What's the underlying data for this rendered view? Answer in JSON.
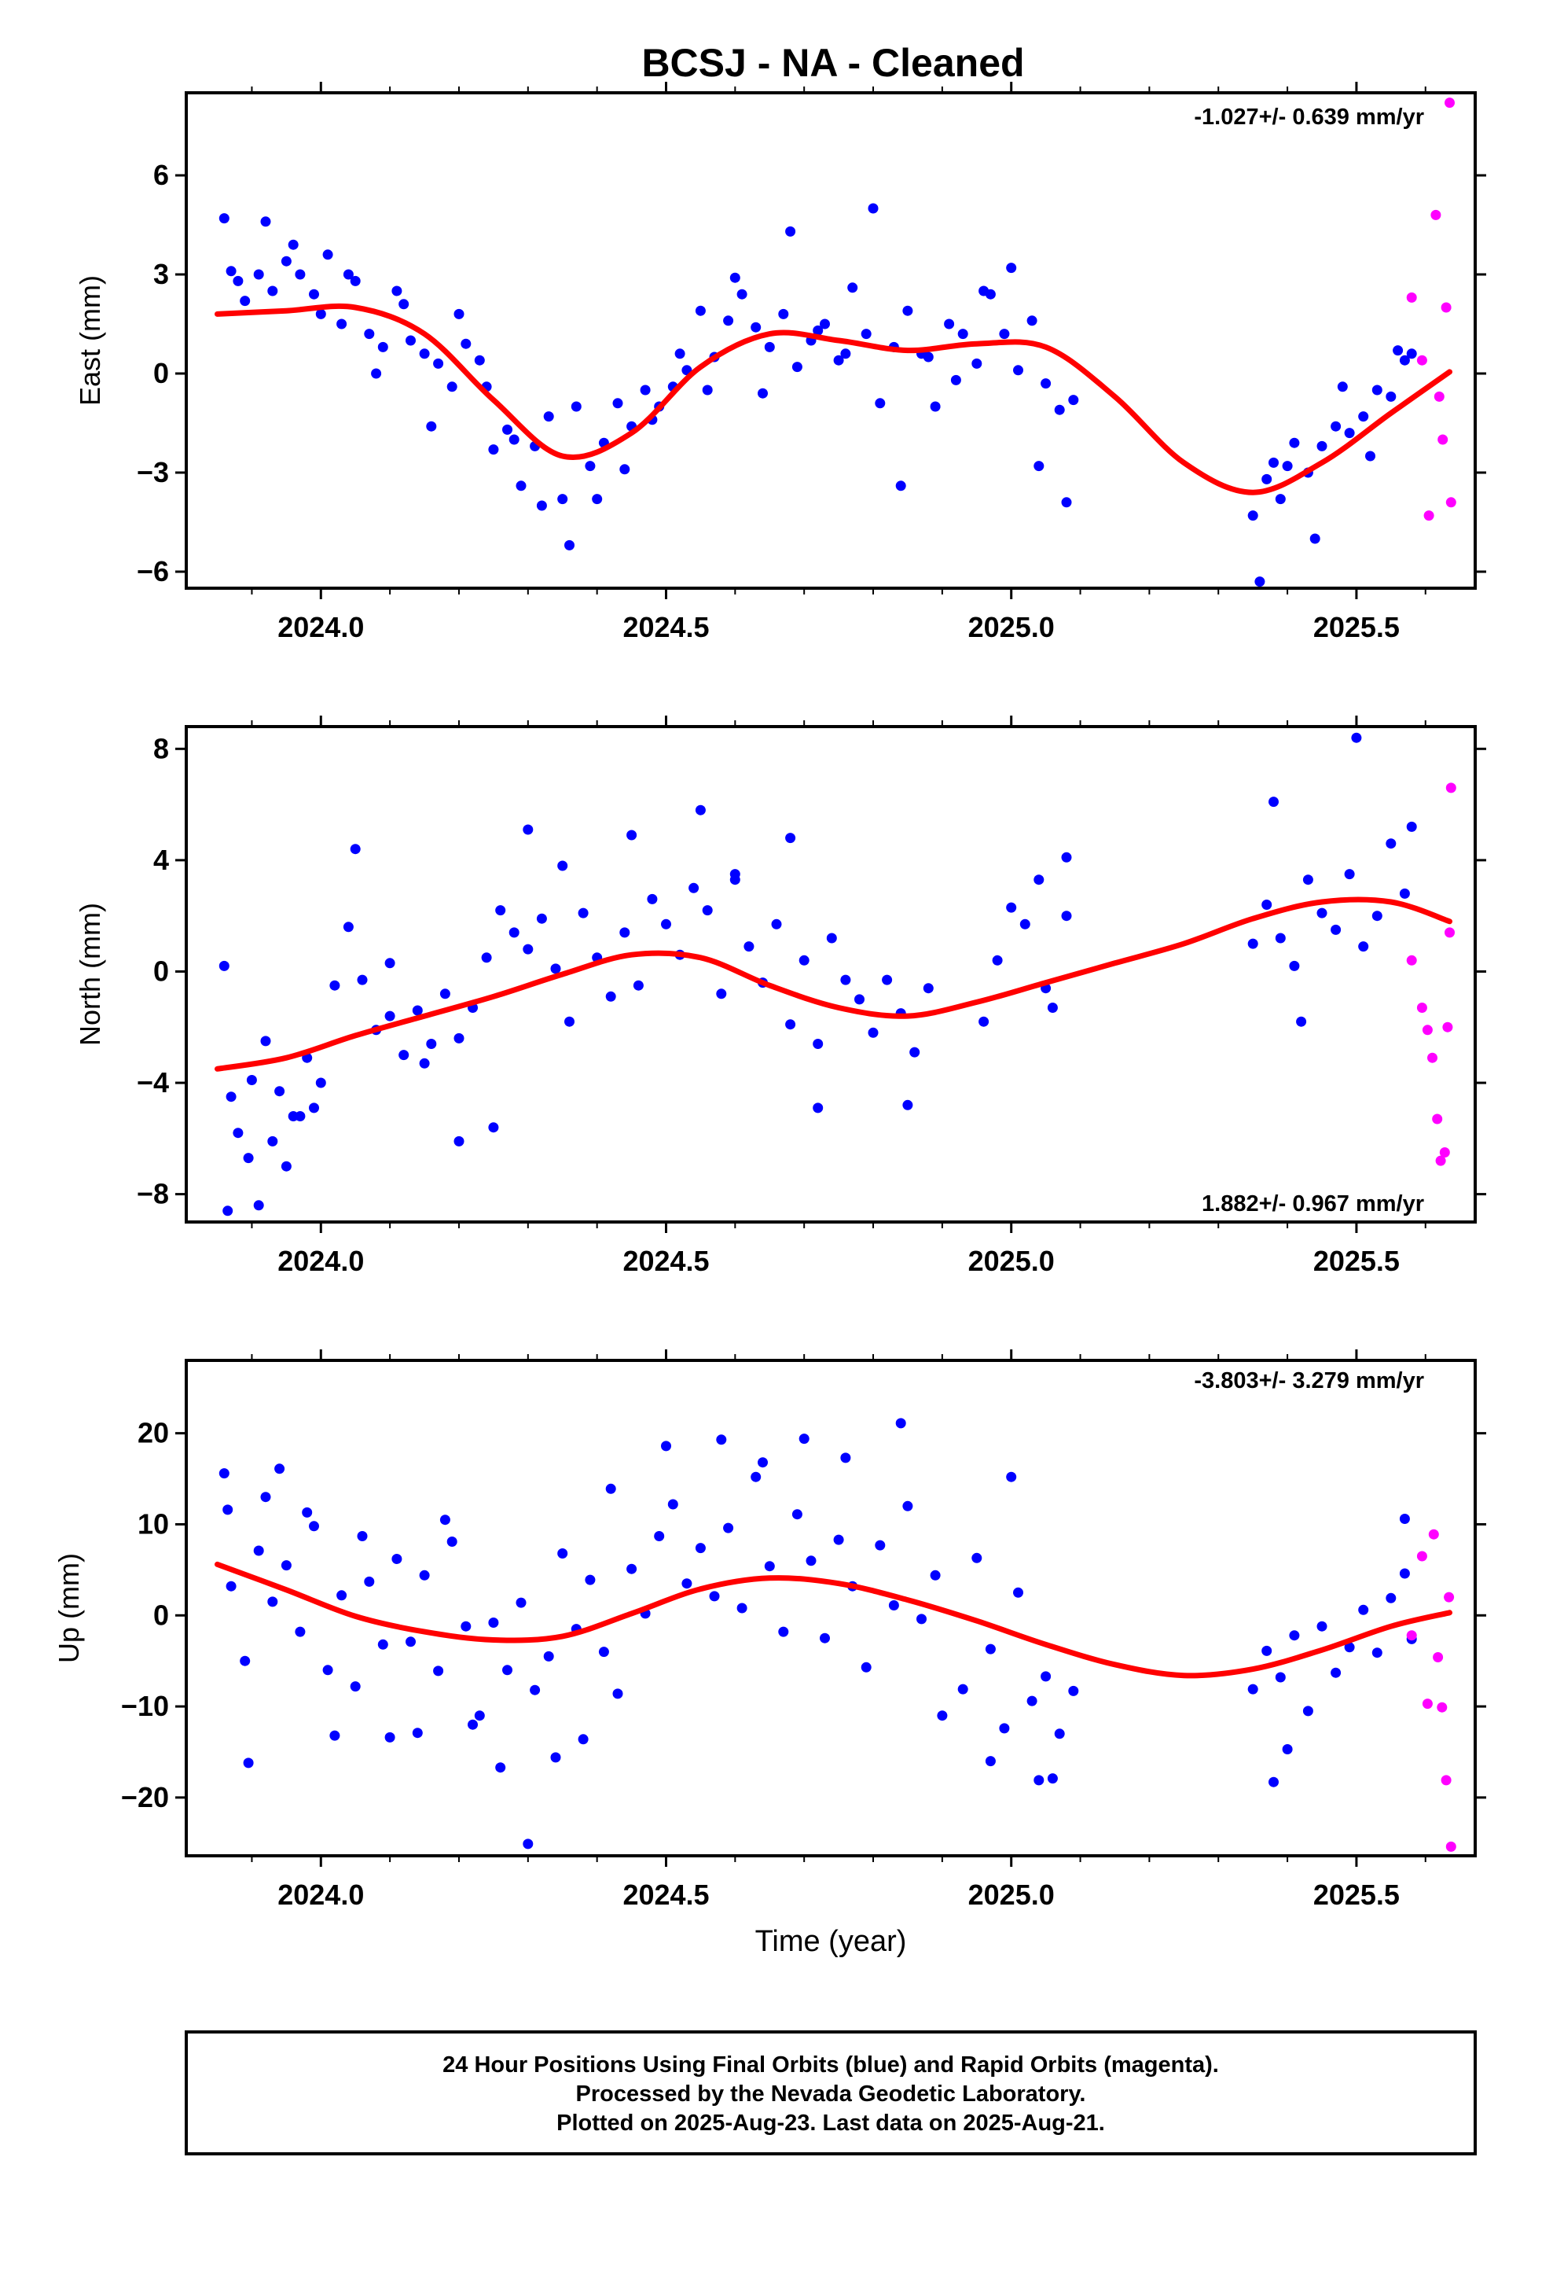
{
  "title": "BCSJ  - NA - Cleaned",
  "xlabel": "Time (year)",
  "footer": {
    "line1": "24 Hour Positions Using Final Orbits (blue) and Rapid Orbits (magenta).",
    "line2": "Processed by the Nevada Geodetic Laboratory.",
    "line3": "Plotted on 2025-Aug-23. Last data on 2025-Aug-21."
  },
  "colors": {
    "final": "#0000ff",
    "rapid": "#ff00ff",
    "fit": "#ff0000",
    "frame": "#000000"
  },
  "chart_data": [
    {
      "type": "scatter",
      "ylabel": "East (mm)",
      "rate": "-1.027+/- 0.639 mm/yr",
      "xlim": [
        2023.805,
        2025.672
      ],
      "ylim": [
        -6.5,
        8.5
      ],
      "xticks": [
        2024.0,
        2024.5,
        2025.0,
        2025.5
      ],
      "xticklabels": [
        "2024.0",
        "2024.5",
        "2025.0",
        "2025.5"
      ],
      "yticks": [
        -6,
        -3,
        0,
        3,
        6
      ],
      "yticklabels": [
        "−6",
        "−3",
        "0",
        "3",
        "6"
      ],
      "fit": {
        "x": [
          2023.85,
          2023.95,
          2024.05,
          2024.15,
          2024.25,
          2024.35,
          2024.45,
          2024.55,
          2024.65,
          2024.75,
          2024.85,
          2024.95,
          2025.05,
          2025.15,
          2025.25,
          2025.35,
          2025.45,
          2025.55,
          2025.635
        ],
        "y": [
          1.8,
          1.9,
          2.0,
          1.2,
          -0.8,
          -2.5,
          -1.8,
          0.2,
          1.2,
          1.0,
          0.7,
          0.9,
          0.8,
          -0.7,
          -2.7,
          -3.6,
          -2.7,
          -1.2,
          0.05
        ]
      },
      "series": [
        {
          "kind": "final",
          "x": [
            2023.86,
            2023.87,
            2023.89,
            2023.91,
            2023.93,
            2023.95,
            2023.97,
            2023.99,
            2024.01,
            2024.03,
            2024.05,
            2024.07,
            2024.09,
            2024.11,
            2024.13,
            2024.15,
            2024.17,
            2024.19,
            2024.21,
            2024.23,
            2024.25,
            2024.27,
            2024.29,
            2024.31,
            2024.33,
            2024.35,
            2024.37,
            2024.39,
            2024.41,
            2024.43,
            2024.45,
            2024.47,
            2024.49,
            2024.51,
            2024.53,
            2024.55,
            2024.57,
            2024.59,
            2024.61,
            2024.63,
            2024.65,
            2024.67,
            2024.69,
            2024.71,
            2024.73,
            2024.75,
            2024.77,
            2024.79,
            2024.81,
            2024.83,
            2024.85,
            2024.87,
            2024.89,
            2024.91,
            2024.93,
            2024.95,
            2024.97,
            2024.99,
            2025.01,
            2025.03,
            2025.05,
            2025.07,
            2025.09,
            2025.35,
            2025.37,
            2025.39,
            2025.41,
            2025.43,
            2025.45,
            2025.47,
            2025.49,
            2025.51,
            2025.53,
            2025.55,
            2025.57,
            2025.58,
            2023.88,
            2023.92,
            2023.96,
            2024.0,
            2024.04,
            2024.08,
            2024.12,
            2024.16,
            2024.2,
            2024.24,
            2024.28,
            2024.32,
            2024.36,
            2024.4,
            2024.44,
            2024.48,
            2024.52,
            2024.56,
            2024.6,
            2024.64,
            2024.68,
            2024.72,
            2024.76,
            2024.8,
            2024.84,
            2024.88,
            2024.92,
            2024.96,
            2025.0,
            2025.04,
            2025.08,
            2025.36,
            2025.38,
            2025.4,
            2025.44,
            2025.48,
            2025.52,
            2025.56
          ],
          "y": [
            4.7,
            3.1,
            2.2,
            3.0,
            2.5,
            3.4,
            3.0,
            2.4,
            3.6,
            1.5,
            2.8,
            1.2,
            0.8,
            2.5,
            1.0,
            0.6,
            0.3,
            -0.4,
            0.9,
            0.4,
            -2.3,
            -1.7,
            -3.4,
            -2.2,
            -1.3,
            -3.8,
            -1.0,
            -2.8,
            -2.1,
            -0.9,
            -1.6,
            -0.5,
            -1.0,
            -0.4,
            0.1,
            1.9,
            0.5,
            1.6,
            2.4,
            1.4,
            0.8,
            1.8,
            0.2,
            1.0,
            1.5,
            0.4,
            2.6,
            1.2,
            -0.9,
            0.8,
            1.9,
            0.6,
            -1.0,
            1.5,
            1.2,
            0.3,
            2.4,
            1.2,
            0.1,
            1.6,
            -0.3,
            -1.1,
            -0.8,
            -4.3,
            -3.2,
            -3.8,
            -2.1,
            -3.0,
            -2.2,
            -1.6,
            -1.8,
            -1.3,
            -0.5,
            -0.7,
            0.4,
            0.6,
            2.8,
            4.6,
            3.9,
            1.8,
            3.0,
            0.0,
            2.1,
            -1.6,
            1.8,
            -0.4,
            -2.0,
            -4.0,
            -5.2,
            -3.8,
            -2.9,
            -1.4,
            0.6,
            -0.5,
            2.9,
            -0.6,
            4.3,
            1.3,
            0.6,
            5.0,
            -3.4,
            0.5,
            -0.2,
            2.5,
            3.2,
            -2.8,
            -3.9,
            -6.3,
            -2.7,
            -2.8,
            -5.0,
            -0.4,
            -2.5,
            0.7
          ]
        },
        {
          "kind": "rapid",
          "x": [
            2025.58,
            2025.595,
            2025.605,
            2025.615,
            2025.62,
            2025.625,
            2025.63,
            2025.635,
            2025.637
          ],
          "y": [
            2.3,
            0.4,
            -4.3,
            4.8,
            -0.7,
            -2.0,
            2.0,
            8.2,
            -3.9
          ]
        }
      ]
    },
    {
      "type": "scatter",
      "ylabel": "North (mm)",
      "rate": "1.882+/- 0.967 mm/yr",
      "xlim": [
        2023.805,
        2025.672
      ],
      "ylim": [
        -9.0,
        8.8
      ],
      "xticks": [
        2024.0,
        2024.5,
        2025.0,
        2025.5
      ],
      "xticklabels": [
        "2024.0",
        "2024.5",
        "2025.0",
        "2025.5"
      ],
      "yticks": [
        -8,
        -4,
        0,
        4,
        8
      ],
      "yticklabels": [
        "−8",
        "−4",
        "0",
        "4",
        "8"
      ],
      "fit": {
        "x": [
          2023.85,
          2023.95,
          2024.05,
          2024.15,
          2024.25,
          2024.35,
          2024.45,
          2024.55,
          2024.65,
          2024.75,
          2024.85,
          2024.95,
          2025.05,
          2025.15,
          2025.25,
          2025.35,
          2025.45,
          2025.55,
          2025.635
        ],
        "y": [
          -3.5,
          -3.1,
          -2.3,
          -1.6,
          -0.9,
          -0.1,
          0.6,
          0.5,
          -0.5,
          -1.3,
          -1.6,
          -1.1,
          -0.4,
          0.3,
          1.0,
          1.9,
          2.5,
          2.5,
          1.8
        ]
      },
      "series": [
        {
          "kind": "final",
          "x": [
            2023.86,
            2023.87,
            2023.88,
            2023.9,
            2023.92,
            2023.94,
            2023.96,
            2023.98,
            2024.0,
            2024.02,
            2024.04,
            2024.06,
            2024.08,
            2024.1,
            2024.12,
            2024.14,
            2024.16,
            2024.18,
            2024.2,
            2024.22,
            2024.24,
            2024.26,
            2024.28,
            2024.3,
            2024.32,
            2024.34,
            2024.36,
            2024.38,
            2024.4,
            2024.42,
            2024.44,
            2024.46,
            2024.48,
            2024.5,
            2024.52,
            2024.54,
            2024.56,
            2024.58,
            2024.6,
            2024.62,
            2024.64,
            2024.66,
            2024.68,
            2024.7,
            2024.72,
            2024.74,
            2024.76,
            2024.78,
            2024.8,
            2024.82,
            2024.84,
            2024.86,
            2024.88,
            2024.96,
            2024.98,
            2025.0,
            2025.02,
            2025.04,
            2025.06,
            2025.08,
            2025.35,
            2025.37,
            2025.39,
            2025.41,
            2025.43,
            2025.45,
            2025.47,
            2025.49,
            2025.51,
            2025.53,
            2025.55,
            2025.57,
            2025.58,
            2023.865,
            2023.895,
            2023.91,
            2023.93,
            2023.95,
            2023.97,
            2023.99,
            2024.05,
            2024.1,
            2024.15,
            2024.2,
            2024.25,
            2024.3,
            2024.35,
            2024.45,
            2024.55,
            2024.6,
            2024.68,
            2024.72,
            2024.85,
            2025.05,
            2025.08,
            2025.38,
            2025.42,
            2025.5
          ],
          "y": [
            0.2,
            -4.5,
            -5.8,
            -3.9,
            -2.5,
            -4.3,
            -5.2,
            -3.1,
            -4.0,
            -0.5,
            1.6,
            -0.3,
            -2.1,
            -1.6,
            -3.0,
            -1.4,
            -2.6,
            -0.8,
            -2.4,
            -1.3,
            0.5,
            2.2,
            1.4,
            0.8,
            1.9,
            0.1,
            -1.8,
            2.1,
            0.5,
            -0.9,
            1.4,
            -0.5,
            2.6,
            1.7,
            0.6,
            3.0,
            2.2,
            -0.8,
            3.5,
            0.9,
            -0.4,
            1.7,
            -1.9,
            0.4,
            -2.6,
            1.2,
            -0.3,
            -1.0,
            -2.2,
            -0.3,
            -1.5,
            -2.9,
            -0.6,
            -1.8,
            0.4,
            2.3,
            1.7,
            3.3,
            -1.3,
            2.0,
            1.0,
            2.4,
            1.2,
            0.2,
            3.3,
            2.1,
            1.5,
            3.5,
            0.9,
            2.0,
            4.6,
            2.8,
            5.2,
            -8.6,
            -6.7,
            -8.4,
            -6.1,
            -7.0,
            -5.2,
            -4.9,
            4.4,
            0.3,
            -3.3,
            -6.1,
            -5.6,
            5.1,
            3.8,
            4.9,
            5.8,
            3.3,
            4.8,
            -4.9,
            -4.8,
            -0.6,
            4.1,
            6.1,
            -1.8,
            8.4
          ]
        },
        {
          "kind": "rapid",
          "x": [
            2025.58,
            2025.595,
            2025.603,
            2025.61,
            2025.617,
            2025.622,
            2025.628,
            2025.632,
            2025.635,
            2025.637
          ],
          "y": [
            0.4,
            -1.3,
            -2.1,
            -3.1,
            -5.3,
            -6.8,
            -6.5,
            -2.0,
            1.4,
            6.6
          ]
        }
      ]
    },
    {
      "type": "scatter",
      "ylabel": "Up (mm)",
      "rate": "-3.803+/- 3.279 mm/yr",
      "xlim": [
        2023.805,
        2025.672
      ],
      "ylim": [
        -26.4,
        28.0
      ],
      "xticks": [
        2024.0,
        2024.5,
        2025.0,
        2025.5
      ],
      "xticklabels": [
        "2024.0",
        "2024.5",
        "2025.0",
        "2025.5"
      ],
      "yticks": [
        -20,
        -10,
        0,
        10,
        20
      ],
      "yticklabels": [
        "−20",
        "−10",
        "0",
        "10",
        "20"
      ],
      "fit": {
        "x": [
          2023.85,
          2023.95,
          2024.05,
          2024.15,
          2024.25,
          2024.35,
          2024.45,
          2024.55,
          2024.65,
          2024.75,
          2024.85,
          2024.95,
          2025.05,
          2025.15,
          2025.25,
          2025.35,
          2025.45,
          2025.55,
          2025.635
        ],
        "y": [
          5.6,
          2.8,
          -0.1,
          -1.8,
          -2.7,
          -2.3,
          0.2,
          2.9,
          4.1,
          3.5,
          1.7,
          -0.6,
          -3.2,
          -5.4,
          -6.6,
          -5.9,
          -3.8,
          -1.2,
          0.3
        ]
      },
      "series": [
        {
          "kind": "final",
          "x": [
            2023.86,
            2023.87,
            2023.89,
            2023.91,
            2023.93,
            2023.95,
            2023.97,
            2023.99,
            2024.01,
            2024.03,
            2024.05,
            2024.07,
            2024.09,
            2024.11,
            2024.13,
            2024.15,
            2024.17,
            2024.19,
            2024.21,
            2024.23,
            2024.25,
            2024.27,
            2024.29,
            2024.31,
            2024.33,
            2024.35,
            2024.37,
            2024.39,
            2024.41,
            2024.43,
            2024.45,
            2024.47,
            2024.49,
            2024.51,
            2024.53,
            2024.55,
            2024.57,
            2024.59,
            2024.61,
            2024.63,
            2024.65,
            2024.67,
            2024.69,
            2024.71,
            2024.73,
            2024.75,
            2024.77,
            2024.79,
            2024.81,
            2024.83,
            2024.85,
            2024.87,
            2024.89,
            2024.93,
            2024.95,
            2024.97,
            2024.99,
            2025.01,
            2025.03,
            2025.05,
            2025.07,
            2025.09,
            2025.35,
            2025.37,
            2025.39,
            2025.41,
            2025.43,
            2025.45,
            2025.47,
            2025.49,
            2025.51,
            2025.53,
            2025.55,
            2025.57,
            2025.58,
            2023.865,
            2023.895,
            2023.92,
            2023.94,
            2023.98,
            2024.02,
            2024.06,
            2024.1,
            2024.14,
            2024.18,
            2024.22,
            2024.26,
            2024.3,
            2024.34,
            2024.38,
            2024.42,
            2024.5,
            2024.58,
            2024.64,
            2024.7,
            2024.76,
            2024.84,
            2024.9,
            2024.97,
            2025.0,
            2025.04,
            2025.06,
            2025.38,
            2025.4,
            2025.57
          ],
          "y": [
            15.6,
            3.2,
            -5.0,
            7.1,
            1.5,
            5.5,
            -1.8,
            9.8,
            -6.0,
            2.2,
            -7.8,
            3.7,
            -3.2,
            6.2,
            -2.9,
            4.4,
            -6.1,
            8.1,
            -1.2,
            -11.0,
            -0.8,
            -6.0,
            1.4,
            -8.2,
            -4.5,
            6.8,
            -1.5,
            3.9,
            -4.0,
            -8.6,
            5.1,
            0.2,
            8.7,
            12.2,
            3.5,
            7.4,
            2.1,
            9.6,
            0.8,
            15.2,
            5.4,
            -1.8,
            11.1,
            6.0,
            -2.5,
            8.3,
            3.2,
            -5.7,
            7.7,
            1.1,
            12.0,
            -0.4,
            4.4,
            -8.1,
            6.3,
            -3.7,
            -12.4,
            2.5,
            -9.4,
            -6.7,
            -13.0,
            -8.3,
            -8.1,
            -3.9,
            -6.8,
            -2.2,
            -10.5,
            -1.2,
            -6.3,
            -3.5,
            0.6,
            -4.1,
            1.9,
            4.6,
            -2.6,
            11.6,
            -16.2,
            13.0,
            16.1,
            11.3,
            -13.2,
            8.7,
            -13.4,
            -12.9,
            10.5,
            -12.0,
            -16.7,
            -25.1,
            -15.6,
            -13.6,
            13.9,
            18.6,
            19.3,
            16.8,
            19.4,
            17.3,
            21.1,
            -11.0,
            -16.0,
            15.2,
            -18.1,
            -17.9,
            -18.3,
            -14.7,
            10.6
          ]
        },
        {
          "kind": "rapid",
          "x": [
            2025.58,
            2025.595,
            2025.603,
            2025.612,
            2025.618,
            2025.624,
            2025.63,
            2025.634,
            2025.637
          ],
          "y": [
            -2.2,
            6.5,
            -9.7,
            8.9,
            -4.6,
            -10.1,
            -18.1,
            2.0,
            -25.4
          ]
        }
      ]
    }
  ]
}
